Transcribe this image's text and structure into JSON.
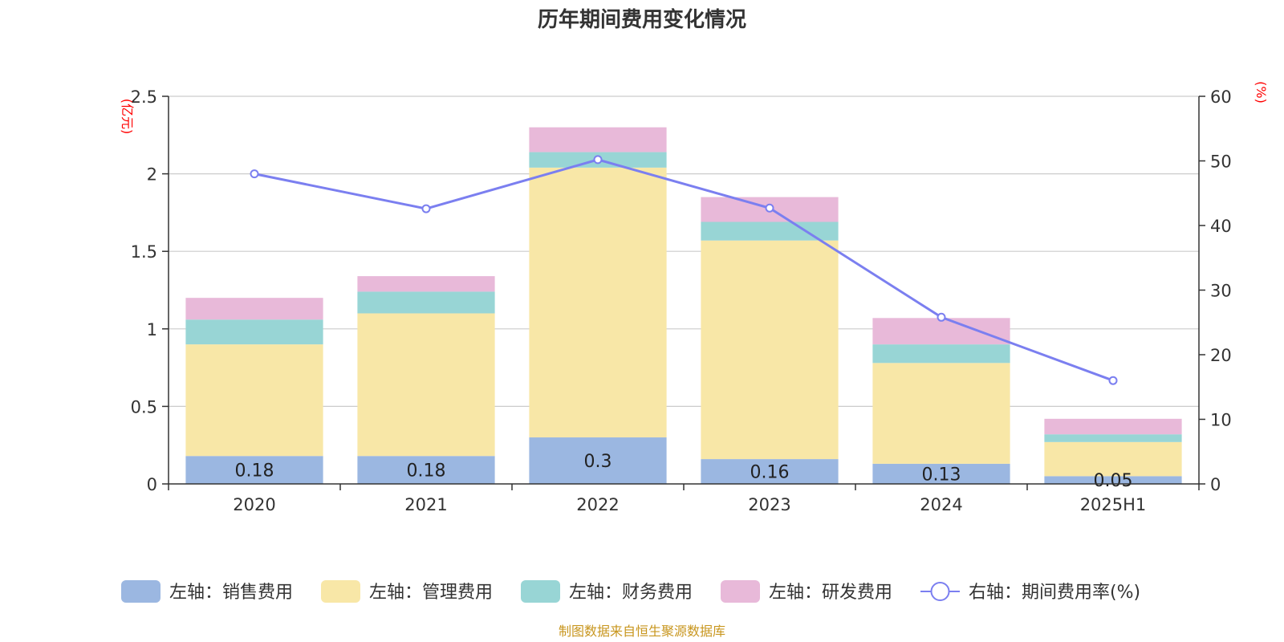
{
  "chart_data": {
    "type": "bar",
    "title": "历年期间费用变化情况",
    "categories": [
      "2020",
      "2021",
      "2022",
      "2023",
      "2024",
      "2025H1"
    ],
    "left_axis": {
      "unit": "(亿元)",
      "ylim": [
        0,
        2.5
      ],
      "ticks": [
        "0",
        "0.5",
        "1",
        "1.5",
        "2",
        "2.5"
      ],
      "tick_values": [
        0,
        0.5,
        1,
        1.5,
        2,
        2.5
      ]
    },
    "right_axis": {
      "unit": "(%)",
      "ylim": [
        0,
        60
      ],
      "ticks": [
        "0",
        "10",
        "20",
        "30",
        "40",
        "50",
        "60"
      ],
      "tick_values": [
        0,
        10,
        20,
        30,
        40,
        50,
        60
      ]
    },
    "series": [
      {
        "name": "左轴：销售费用",
        "type": "bar",
        "color": "#9bb7e1",
        "values": [
          0.18,
          0.18,
          0.3,
          0.16,
          0.13,
          0.05
        ],
        "labels": [
          "0.18",
          "0.18",
          "0.3",
          "0.16",
          "0.13",
          "0.05"
        ]
      },
      {
        "name": "左轴：管理费用",
        "type": "bar",
        "color": "#f8e7a7",
        "values": [
          0.72,
          0.92,
          1.74,
          1.41,
          0.65,
          0.22
        ]
      },
      {
        "name": "左轴：财务费用",
        "type": "bar",
        "color": "#98d5d5",
        "values": [
          0.16,
          0.14,
          0.1,
          0.12,
          0.12,
          0.05
        ]
      },
      {
        "name": "左轴：研发费用",
        "type": "bar",
        "color": "#e8b9d9",
        "values": [
          0.14,
          0.1,
          0.16,
          0.16,
          0.17,
          0.1
        ]
      },
      {
        "name": "右轴：期间费用率(%)",
        "type": "line",
        "color": "#7b7ff0",
        "values": [
          48.0,
          42.6,
          50.2,
          42.7,
          25.8,
          16.0
        ]
      }
    ],
    "grid": true,
    "legend_position": "bottom"
  },
  "source_note": "制图数据来自恒生聚源数据库"
}
